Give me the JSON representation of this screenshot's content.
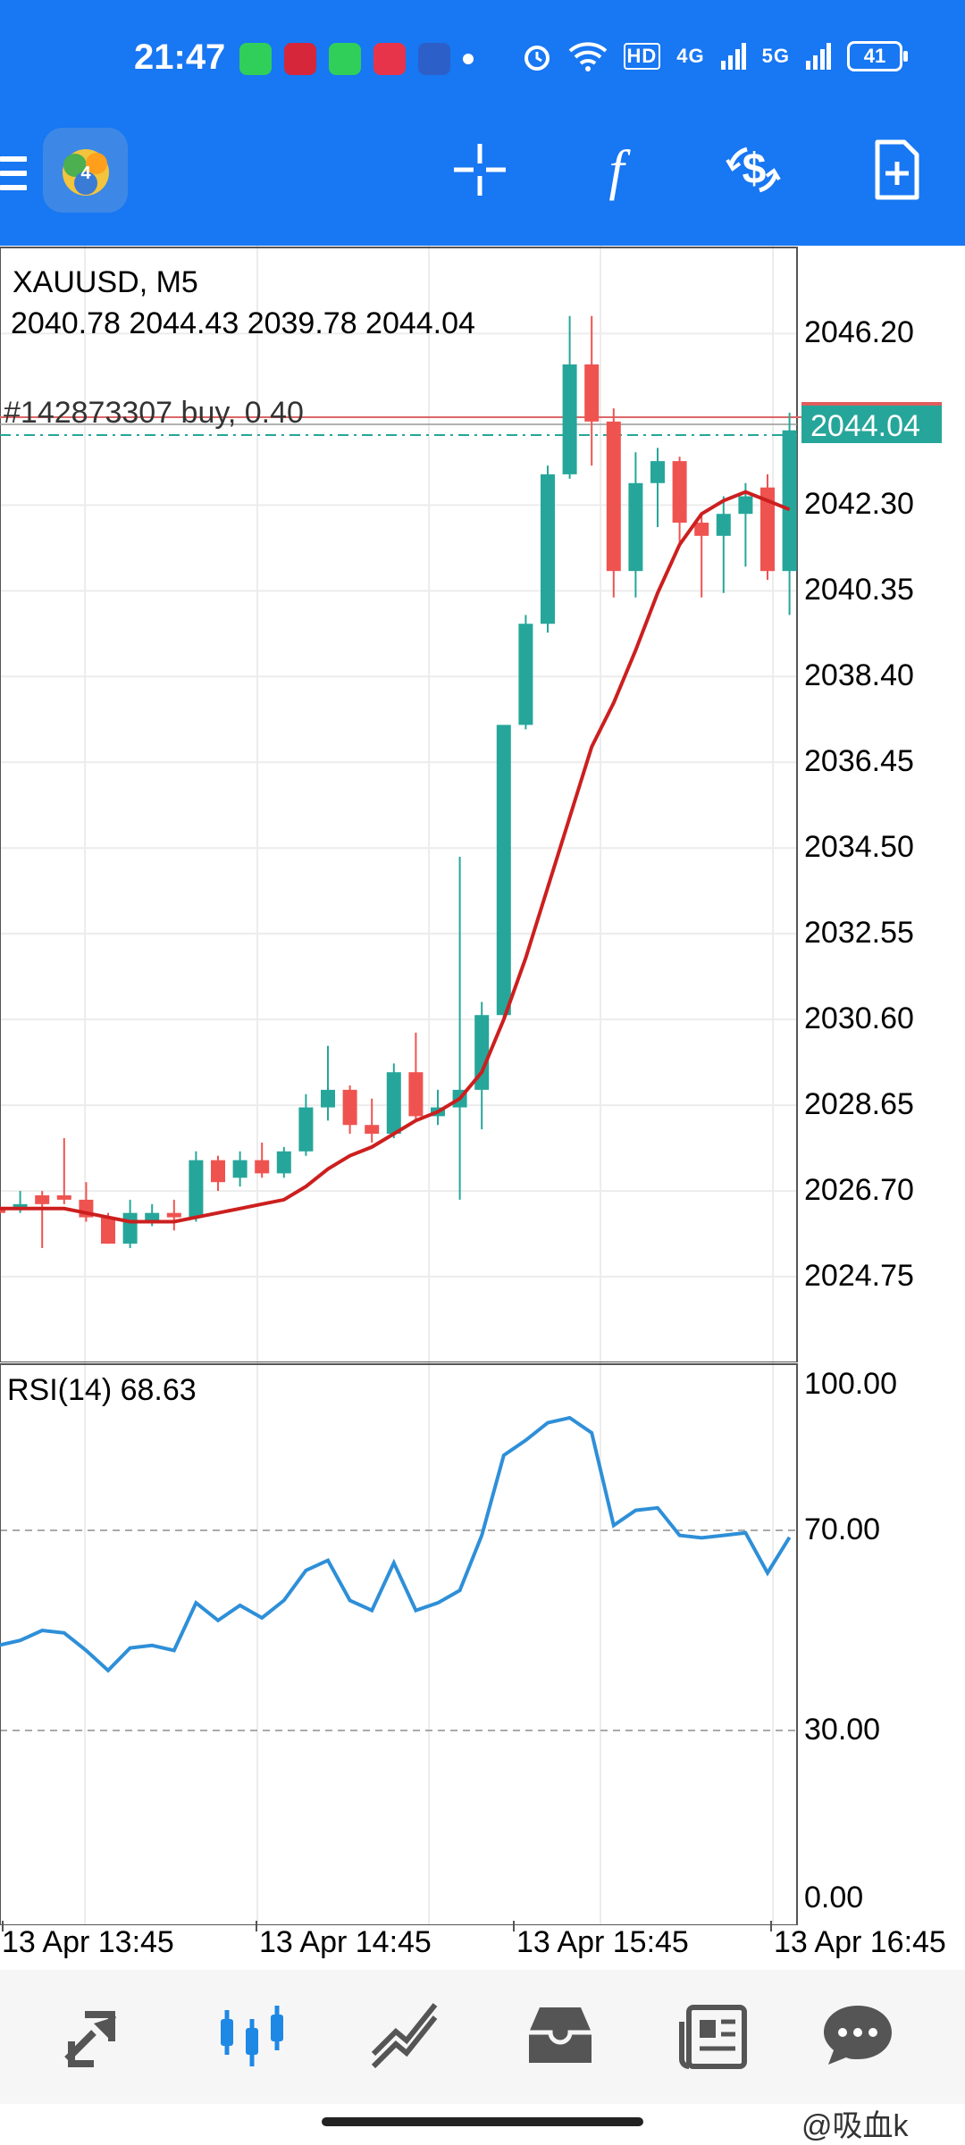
{
  "status_bar": {
    "time": "21:47",
    "network_4g": "4G",
    "network_5g": "5G",
    "hd": "HD",
    "battery": "41"
  },
  "toolbar": {
    "icons": [
      "menu-icon",
      "app-logo",
      "crosshair-icon",
      "function-icon",
      "trade-icon",
      "new-order-icon"
    ]
  },
  "chart": {
    "symbol": "XAUUSD, M5",
    "ohlc": "2040.78 2044.43 2039.78 2044.04",
    "position_line": "#142873307 buy, 0.40",
    "current_price": "2044.04",
    "price_axis": [
      "2046.20",
      "2042.30",
      "2040.35",
      "2038.40",
      "2036.45",
      "2034.50",
      "2032.55",
      "2030.60",
      "2028.65",
      "2026.70",
      "2024.75"
    ],
    "time_axis": [
      "13 Apr 13:45",
      "13 Apr 14:45",
      "13 Apr 15:45",
      "13 Apr 16:45"
    ],
    "rsi_label": "RSI(14) 68.63",
    "rsi_axis": [
      "100.00",
      "70.00",
      "30.00",
      "0.00"
    ]
  },
  "nav": {
    "items": [
      "quotes-icon",
      "chart-icon",
      "trade-icon",
      "history-icon",
      "news-icon",
      "messages-icon"
    ]
  },
  "watermark": "@吸血k",
  "colors": {
    "accent": "#1877f2",
    "bull": "#26a69a",
    "bear": "#ef5350",
    "ma": "#cc1f1f",
    "rsi": "#2e8fd8"
  },
  "chart_data": {
    "type": "candlestick",
    "candles": [
      {
        "o": 2026.3,
        "h": 2026.5,
        "l": 2025.6,
        "c": 2026.2
      },
      {
        "o": 2026.3,
        "h": 2026.7,
        "l": 2026.2,
        "c": 2026.4
      },
      {
        "o": 2026.6,
        "h": 2026.7,
        "l": 2025.4,
        "c": 2026.4
      },
      {
        "o": 2026.6,
        "h": 2027.9,
        "l": 2026.4,
        "c": 2026.5
      },
      {
        "o": 2026.5,
        "h": 2026.9,
        "l": 2026.0,
        "c": 2026.1
      },
      {
        "o": 2026.1,
        "h": 2026.2,
        "l": 2025.5,
        "c": 2025.5
      },
      {
        "o": 2025.5,
        "h": 2026.5,
        "l": 2025.4,
        "c": 2026.2
      },
      {
        "o": 2026.0,
        "h": 2026.4,
        "l": 2025.9,
        "c": 2026.2
      },
      {
        "o": 2026.2,
        "h": 2026.5,
        "l": 2025.8,
        "c": 2026.1
      },
      {
        "o": 2026.1,
        "h": 2027.6,
        "l": 2026.0,
        "c": 2027.4
      },
      {
        "o": 2027.4,
        "h": 2027.5,
        "l": 2026.7,
        "c": 2026.9
      },
      {
        "o": 2027.0,
        "h": 2027.6,
        "l": 2026.8,
        "c": 2027.4
      },
      {
        "o": 2027.4,
        "h": 2027.8,
        "l": 2027.0,
        "c": 2027.1
      },
      {
        "o": 2027.1,
        "h": 2027.7,
        "l": 2027.0,
        "c": 2027.6
      },
      {
        "o": 2027.6,
        "h": 2028.9,
        "l": 2027.5,
        "c": 2028.6
      },
      {
        "o": 2028.6,
        "h": 2030.0,
        "l": 2028.3,
        "c": 2029.0
      },
      {
        "o": 2029.0,
        "h": 2029.1,
        "l": 2028.0,
        "c": 2028.2
      },
      {
        "o": 2028.2,
        "h": 2028.8,
        "l": 2027.8,
        "c": 2028.0
      },
      {
        "o": 2028.0,
        "h": 2029.6,
        "l": 2027.9,
        "c": 2029.4
      },
      {
        "o": 2029.4,
        "h": 2030.3,
        "l": 2028.3,
        "c": 2028.4
      },
      {
        "o": 2028.4,
        "h": 2029.0,
        "l": 2028.2,
        "c": 2028.6
      },
      {
        "o": 2028.6,
        "h": 2034.3,
        "l": 2026.5,
        "c": 2029.0
      },
      {
        "o": 2029.0,
        "h": 2031.0,
        "l": 2028.1,
        "c": 2030.7
      },
      {
        "o": 2030.7,
        "h": 2037.2,
        "l": 2030.6,
        "c": 2037.3
      },
      {
        "o": 2037.3,
        "h": 2039.8,
        "l": 2037.2,
        "c": 2039.6
      },
      {
        "o": 2039.6,
        "h": 2043.2,
        "l": 2039.4,
        "c": 2043.0
      },
      {
        "o": 2043.0,
        "h": 2046.6,
        "l": 2042.9,
        "c": 2045.5
      },
      {
        "o": 2045.5,
        "h": 2046.6,
        "l": 2043.2,
        "c": 2044.2
      },
      {
        "o": 2044.2,
        "h": 2044.5,
        "l": 2040.2,
        "c": 2040.8
      },
      {
        "o": 2040.8,
        "h": 2043.5,
        "l": 2040.2,
        "c": 2042.8
      },
      {
        "o": 2042.8,
        "h": 2043.6,
        "l": 2041.8,
        "c": 2043.3
      },
      {
        "o": 2043.3,
        "h": 2043.4,
        "l": 2041.4,
        "c": 2041.9
      },
      {
        "o": 2041.9,
        "h": 2042.1,
        "l": 2040.2,
        "c": 2041.6
      },
      {
        "o": 2041.6,
        "h": 2042.5,
        "l": 2040.3,
        "c": 2042.1
      },
      {
        "o": 2042.1,
        "h": 2042.8,
        "l": 2040.9,
        "c": 2042.5
      },
      {
        "o": 2042.7,
        "h": 2043.0,
        "l": 2040.6,
        "c": 2040.8
      },
      {
        "o": 2040.8,
        "h": 2044.4,
        "l": 2039.8,
        "c": 2044.0
      }
    ],
    "ma": [
      2026.3,
      2026.3,
      2026.3,
      2026.3,
      2026.2,
      2026.1,
      2026.0,
      2026.0,
      2026.0,
      2026.1,
      2026.2,
      2026.3,
      2026.4,
      2026.5,
      2026.8,
      2027.2,
      2027.5,
      2027.7,
      2028.0,
      2028.3,
      2028.5,
      2028.8,
      2029.4,
      2030.6,
      2032.0,
      2033.6,
      2035.2,
      2036.8,
      2037.8,
      2039.0,
      2040.3,
      2041.4,
      2042.1,
      2042.4,
      2042.6,
      2042.4,
      2042.2
    ],
    "rsi": [
      47,
      48,
      50,
      49.5,
      46,
      42,
      46.5,
      47,
      46,
      55.5,
      52,
      55,
      52.5,
      56,
      62,
      64,
      56,
      54,
      63.5,
      54,
      55.5,
      58,
      69,
      85,
      88,
      91.5,
      92.5,
      89.5,
      71,
      74,
      74.5,
      69,
      68.5,
      69,
      69.5,
      61.5,
      68.6
    ],
    "price_range": [
      2022.8,
      2048.2
    ],
    "rsi_range": [
      0,
      100
    ],
    "rsi_levels": [
      70,
      30
    ]
  }
}
